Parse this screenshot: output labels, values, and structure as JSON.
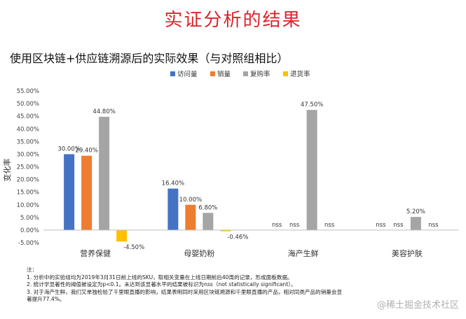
{
  "slide": {
    "title": "实证分析的结果",
    "chart_title": "使用区块链+供应链溯源后的实际效果（与对照组相比）"
  },
  "chart_data": {
    "type": "bar",
    "ylabel": "变化率",
    "ylim": [
      -5,
      55
    ],
    "ytick_step": 5,
    "yticks": [
      "-5.00%",
      "0.00%",
      "5.00%",
      "10.00%",
      "15.00%",
      "20.00%",
      "25.00%",
      "30.00%",
      "35.00%",
      "40.00%",
      "45.00%",
      "50.00%",
      "55.00%"
    ],
    "categories": [
      "营养保健",
      "母婴奶粉",
      "海产生鲜",
      "美容护肤"
    ],
    "series": [
      {
        "name": "访问量",
        "color": "#4472c4",
        "values": [
          30.0,
          16.4,
          null,
          null
        ],
        "labels": [
          "30.00%",
          "16.40%",
          "nss",
          "nss"
        ]
      },
      {
        "name": "销量",
        "color": "#ed7d31",
        "values": [
          29.4,
          10.0,
          null,
          null
        ],
        "labels": [
          "29.40%",
          "10.00%",
          "nss",
          "nss"
        ]
      },
      {
        "name": "复购率",
        "color": "#a5a5a5",
        "values": [
          44.8,
          6.8,
          47.5,
          5.2
        ],
        "labels": [
          "44.80%",
          "6.80%",
          "47.50%",
          "5.20%"
        ]
      },
      {
        "name": "退货率",
        "color": "#ffc000",
        "values": [
          -4.5,
          -0.46,
          null,
          null
        ],
        "labels": [
          "-4.50%",
          "-0.46%",
          "nss",
          "nss"
        ]
      }
    ],
    "grid": false,
    "legend_position": "top"
  },
  "footnotes": {
    "heading": "注：",
    "items": [
      "1. 分析中的实验组均为2019年3月31日前上线的SKU，取相关变量在上线日期前后40周的记录，形成面板数据。",
      "2. 统计学显著性的阈值被设定为p<0.1。未达到该显著水平的结果被标识为nss（not statistically significant）。",
      "3. 对于海产生鲜，我们又单独检验了千里眼直播的影响，结果表明同时采用区块链溯源和千里眼直播的产品，相对同类产品的销量会显",
      "著提升77.4%。"
    ]
  },
  "watermark": "@稀土掘金技术社区"
}
